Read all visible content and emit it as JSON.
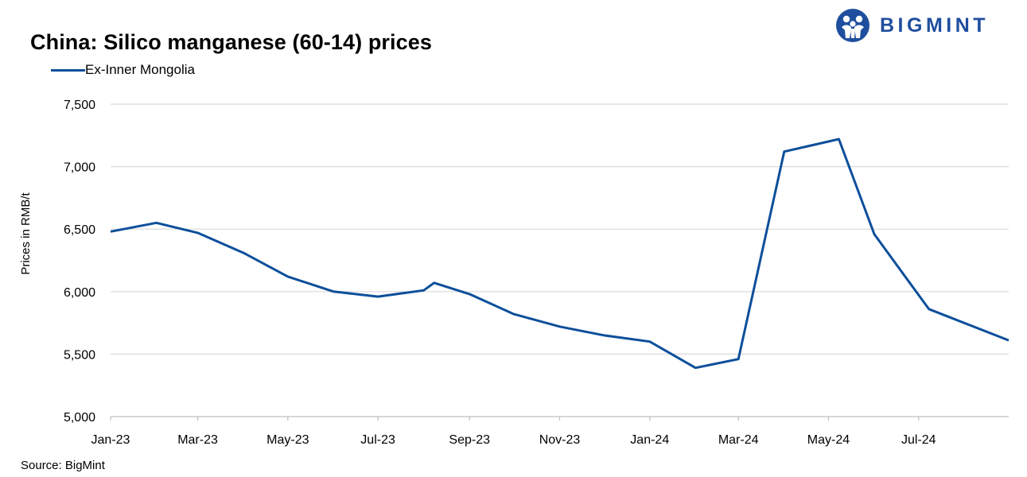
{
  "header": {
    "title": "China: Silico manganese (60-14) prices",
    "brand": "BIGMINT"
  },
  "footer": {
    "source": "Source: BigMint"
  },
  "chart_data": {
    "type": "line",
    "title": "China: Silico manganese (60-14) prices",
    "xlabel": "",
    "ylabel": "Prices in RMB/t",
    "ylim": [
      5000,
      7500
    ],
    "y_ticks": [
      5000,
      5500,
      6000,
      6500,
      7000,
      7500
    ],
    "y_tick_labels": [
      "5,000",
      "5,500",
      "6,000",
      "6,500",
      "7,000",
      "7,500"
    ],
    "x_tick_labels": [
      "Jan-23",
      "Mar-23",
      "May-23",
      "Jul-23",
      "Sep-23",
      "Nov-23",
      "Jan-24",
      "Mar-24",
      "May-24",
      "Jul-24"
    ],
    "x_tick_dates": [
      "2023-01-01",
      "2023-03-01",
      "2023-05-01",
      "2023-07-01",
      "2023-09-01",
      "2023-11-01",
      "2024-01-01",
      "2024-03-01",
      "2024-05-01",
      "2024-07-01"
    ],
    "xlim": [
      "2023-01-01",
      "2024-08-31"
    ],
    "grid": "horizontal",
    "legend_position": "top-left",
    "colors": {
      "line": "#0d4f9b",
      "grid": "#d9d9d9",
      "axis": "#bfbfbf",
      "brand": "#1f4e9e"
    },
    "series": [
      {
        "name": "Ex-Inner Mongolia",
        "color": "#0d4f9b",
        "points": [
          {
            "x": "2023-01-01",
            "y": 6480
          },
          {
            "x": "2023-02-01",
            "y": 6550
          },
          {
            "x": "2023-03-01",
            "y": 6470
          },
          {
            "x": "2023-04-01",
            "y": 6310
          },
          {
            "x": "2023-05-01",
            "y": 6120
          },
          {
            "x": "2023-06-01",
            "y": 6000
          },
          {
            "x": "2023-07-01",
            "y": 5960
          },
          {
            "x": "2023-08-01",
            "y": 6010
          },
          {
            "x": "2023-08-08",
            "y": 6070
          },
          {
            "x": "2023-09-01",
            "y": 5980
          },
          {
            "x": "2023-10-01",
            "y": 5820
          },
          {
            "x": "2023-11-01",
            "y": 5720
          },
          {
            "x": "2023-12-01",
            "y": 5650
          },
          {
            "x": "2024-01-01",
            "y": 5600
          },
          {
            "x": "2024-02-01",
            "y": 5390
          },
          {
            "x": "2024-03-01",
            "y": 5460
          },
          {
            "x": "2024-04-01",
            "y": 7120
          },
          {
            "x": "2024-05-08",
            "y": 7220
          },
          {
            "x": "2024-06-01",
            "y": 6460
          },
          {
            "x": "2024-07-08",
            "y": 5860
          },
          {
            "x": "2024-08-31",
            "y": 5610
          }
        ]
      }
    ]
  }
}
